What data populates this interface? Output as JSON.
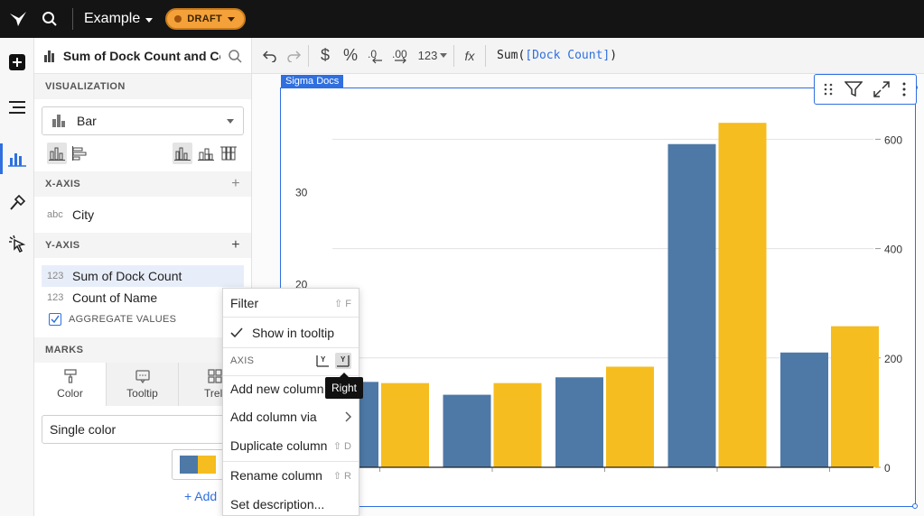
{
  "topbar": {
    "doc_title": "Example",
    "status_badge": "DRAFT"
  },
  "panel": {
    "title": "Sum of Dock Count and Co...",
    "visualization_header": "VISUALIZATION",
    "chart_type": "Bar",
    "x_axis_header": "X-AXIS",
    "x_field": {
      "type": "abc",
      "name": "City"
    },
    "y_axis_header": "Y-AXIS",
    "y_fields": [
      {
        "type": "123",
        "name": "Sum of Dock Count"
      },
      {
        "type": "123",
        "name": "Count of Name"
      }
    ],
    "aggregate_label": "AGGREGATE VALUES",
    "marks_header": "MARKS",
    "marks_tabs": [
      "Color",
      "Tooltip",
      "Trell"
    ],
    "color_mode": "Single color",
    "add_label": "Add"
  },
  "formula_bar": {
    "format_number": "123",
    "fx": "fx",
    "formula_func": "Sum(",
    "formula_ref": "[Dock Count]",
    "formula_end": ")"
  },
  "element": {
    "tag": "Sigma Docs"
  },
  "context_menu": {
    "filter": "Filter",
    "filter_shortcut": "⇧ F",
    "show_in_tooltip": "Show in tooltip",
    "axis_label": "AXIS",
    "add_new_column": "Add new column",
    "add_column_via": "Add column via",
    "duplicate_column": "Duplicate column",
    "duplicate_shortcut": "⇧ D",
    "rename_column": "Rename column",
    "rename_shortcut": "⇧ R",
    "set_description": "Set description..."
  },
  "tooltip": "Right",
  "colors": {
    "series1": "#4e79a7",
    "series2": "#f5bd1f",
    "accent": "#2f6fe0"
  },
  "chart_data": {
    "type": "bar",
    "series": [
      {
        "values": [
          9.3,
          7.9,
          9.8,
          35.2,
          12.5
        ],
        "axis": "left"
      },
      {
        "values": [
          154,
          154,
          184,
          630,
          258
        ],
        "axis": "right"
      }
    ],
    "left_ticks": [
      "30",
      "20"
    ],
    "right_ticks": [
      "600",
      "400",
      "200",
      "0"
    ],
    "ylim_left": [
      0,
      39.3
    ],
    "ylim_right": [
      0,
      660
    ]
  }
}
